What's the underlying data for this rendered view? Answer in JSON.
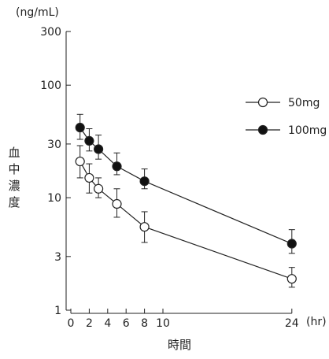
{
  "chart_data": {
    "type": "line",
    "x_unit_label": "(hr)",
    "y_unit_label": "(ng/mL)",
    "xlabel": "時間",
    "ylabel_chars": [
      "血",
      "中",
      "濃",
      "度"
    ],
    "y_scale": "log",
    "ylim": [
      1,
      300
    ],
    "y_ticks": [
      1,
      3,
      10,
      30,
      100,
      300
    ],
    "y_tick_labels": [
      "1",
      "3",
      "10",
      "30",
      "100",
      "300"
    ],
    "x_ticks": [
      0,
      2,
      4,
      6,
      8,
      10,
      24
    ],
    "x_tick_labels": [
      "0",
      "2",
      "4",
      "6",
      "8",
      "10",
      "24"
    ],
    "series": [
      {
        "name": "50mg",
        "marker": "open-circle",
        "x": [
          1,
          2,
          3,
          5,
          8,
          24
        ],
        "y": [
          21,
          15,
          12,
          8.8,
          5.5,
          1.9
        ],
        "err_upper": [
          29,
          20,
          15,
          12,
          7.5,
          2.4
        ],
        "err_lower": [
          15,
          11,
          10,
          6.7,
          4,
          1.6
        ]
      },
      {
        "name": "100mg",
        "marker": "filled-circle",
        "x": [
          1,
          2,
          3,
          5,
          8,
          24
        ],
        "y": [
          42,
          32,
          27,
          19,
          14,
          3.9
        ],
        "err_upper": [
          55,
          41,
          36,
          25,
          18,
          5.2
        ],
        "err_lower": [
          33,
          26,
          22,
          16,
          12,
          3.2
        ]
      }
    ],
    "legend_position": "right",
    "grid": false
  },
  "colors": {
    "line": "#222222",
    "open_marker_fill": "#ffffff",
    "filled_marker_fill": "#111111"
  }
}
